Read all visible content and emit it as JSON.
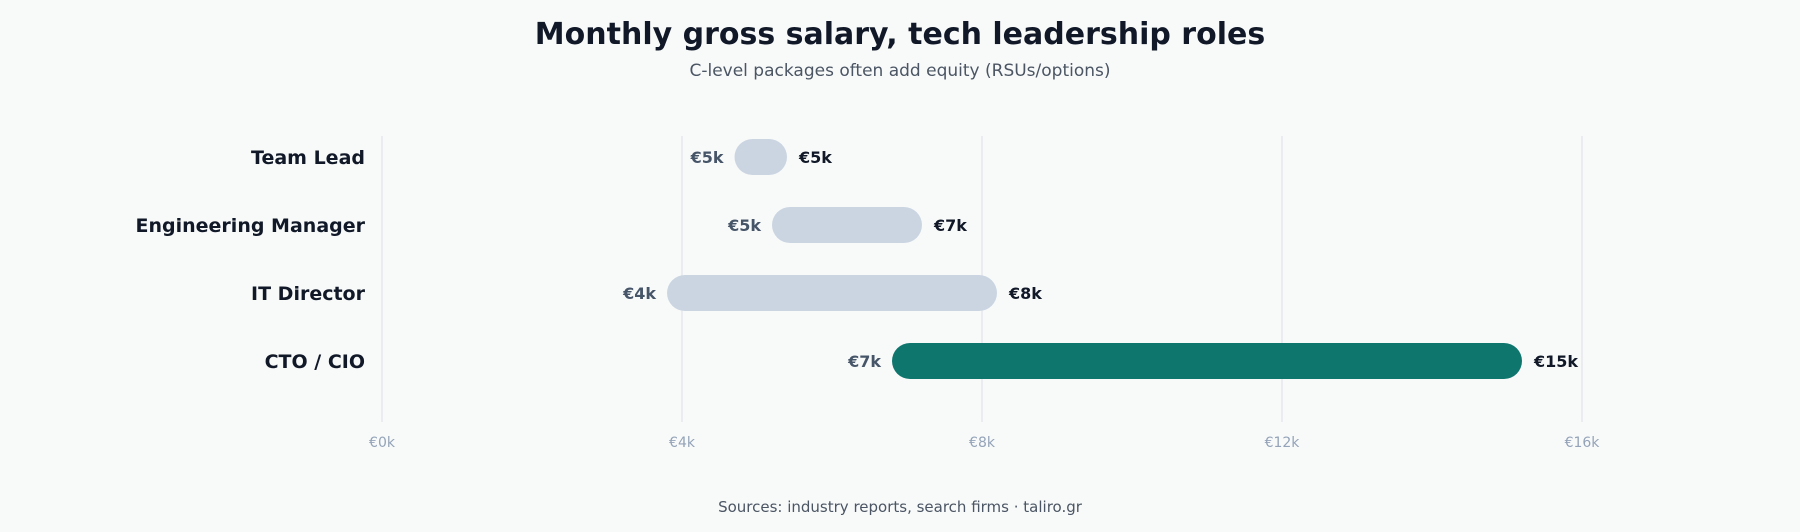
{
  "chart_data": {
    "type": "bar",
    "subtype": "range",
    "title": "Monthly gross salary, tech leadership roles",
    "subtitle": "C-level packages often add equity (RSUs/options)",
    "source": "Sources: industry reports, search firms · taliro.gr",
    "xlim": [
      0,
      16000
    ],
    "x_ticks": [
      {
        "value": 0,
        "label": "€0k"
      },
      {
        "value": 4000,
        "label": "€4k"
      },
      {
        "value": 8000,
        "label": "€8k"
      },
      {
        "value": 12000,
        "label": "€12k"
      },
      {
        "value": 16000,
        "label": "€16k"
      }
    ],
    "grid": true,
    "categories": [
      "Team Lead",
      "Engineering Manager",
      "IT Director",
      "CTO / CIO"
    ],
    "ranges": [
      {
        "low": 4700,
        "high": 5400,
        "low_label": "€5k",
        "high_label": "€5k",
        "highlight": false
      },
      {
        "low": 5200,
        "high": 7200,
        "low_label": "€5k",
        "high_label": "€7k",
        "highlight": false
      },
      {
        "low": 3800,
        "high": 8200,
        "low_label": "€4k",
        "high_label": "€8k",
        "highlight": false
      },
      {
        "low": 6800,
        "high": 15200,
        "low_label": "€7k",
        "high_label": "€15k",
        "highlight": true
      }
    ]
  },
  "colors": {
    "background": "#f8fafa",
    "bar_default": "#cbd5e1",
    "bar_highlight": "#0f766e",
    "grid": "#e5e7eb"
  }
}
